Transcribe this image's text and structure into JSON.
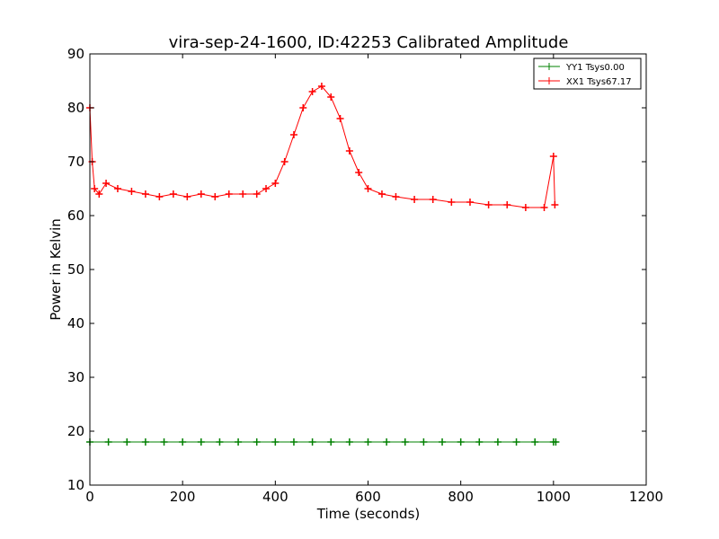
{
  "chart_data": {
    "type": "line",
    "title": "vira-sep-24-1600, ID:42253 Calibrated Amplitude",
    "xlabel": "Time (seconds)",
    "ylabel": "Power in Kelvin",
    "xlim": [
      0,
      1200
    ],
    "ylim": [
      10,
      90
    ],
    "xticks": [
      0,
      200,
      400,
      600,
      800,
      1000,
      1200
    ],
    "yticks": [
      10,
      20,
      30,
      40,
      50,
      60,
      70,
      80,
      90
    ],
    "grid": false,
    "legend": {
      "position": "top-right",
      "entries": [
        "YY1 Tsys0.00",
        "XX1 Tsys67.17"
      ]
    },
    "series": [
      {
        "name": "YY1 Tsys0.00",
        "color": "#008000",
        "marker": "plus",
        "x": [
          0,
          40,
          80,
          120,
          160,
          200,
          240,
          280,
          320,
          360,
          400,
          440,
          480,
          520,
          560,
          600,
          640,
          680,
          720,
          760,
          800,
          840,
          880,
          920,
          960,
          1000,
          1005
        ],
        "y": [
          18,
          18,
          18,
          18,
          18,
          18,
          18,
          18,
          18,
          18,
          18,
          18,
          18,
          18,
          18,
          18,
          18,
          18,
          18,
          18,
          18,
          18,
          18,
          18,
          18,
          18,
          18
        ]
      },
      {
        "name": "XX1 Tsys67.17",
        "color": "#ff0000",
        "marker": "plus",
        "x": [
          0,
          5,
          10,
          20,
          35,
          60,
          90,
          120,
          150,
          180,
          210,
          240,
          270,
          300,
          330,
          360,
          380,
          400,
          420,
          440,
          460,
          480,
          500,
          520,
          540,
          560,
          580,
          600,
          630,
          660,
          700,
          740,
          780,
          820,
          860,
          900,
          940,
          980,
          1000,
          1003
        ],
        "y": [
          80,
          70,
          65,
          64,
          66,
          65,
          64.5,
          64,
          63.5,
          64,
          63.5,
          64,
          63.5,
          64,
          64,
          64,
          65,
          66,
          70,
          75,
          80,
          83,
          84,
          82,
          78,
          72,
          68,
          65,
          64,
          63.5,
          63,
          63,
          62.5,
          62.5,
          62,
          62,
          61.5,
          61.5,
          71,
          62
        ]
      }
    ]
  }
}
